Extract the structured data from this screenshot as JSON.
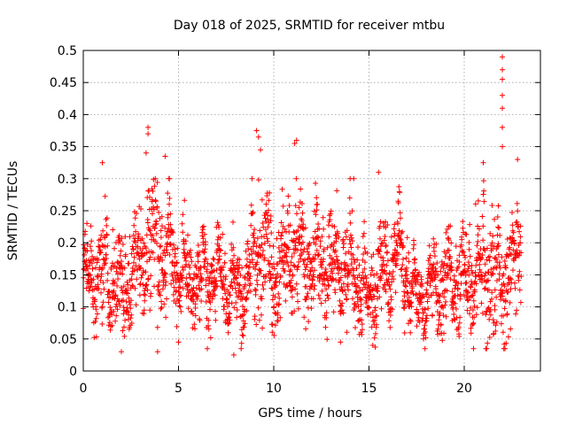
{
  "chart_data": {
    "type": "scatter",
    "title": "Day 018 of 2025, SRMTID for receiver mtbu",
    "xlabel": "GPS time / hours",
    "ylabel": "SRMTID / TECUs",
    "xlim": [
      0,
      24
    ],
    "ylim": [
      0,
      0.5
    ],
    "x_ticks": [
      0,
      5,
      10,
      15,
      20
    ],
    "x_tick_labels": [
      "0",
      "5",
      "10",
      "15",
      "20"
    ],
    "y_ticks": [
      0,
      0.05,
      0.1,
      0.15,
      0.2,
      0.25,
      0.3,
      0.35,
      0.4,
      0.45,
      0.5
    ],
    "y_tick_labels": [
      "0",
      "0.05",
      "0.1",
      "0.15",
      "0.2",
      "0.25",
      "0.3",
      "0.35",
      "0.4",
      "0.45",
      "0.5"
    ],
    "grid": true,
    "legend": "none",
    "marker": "+",
    "marker_color": "#ff0000",
    "x_data_end": 23,
    "x_sample_step": 0.01,
    "profile_hours": [
      0,
      1,
      2,
      3,
      3.8,
      4.5,
      5.5,
      7,
      8.5,
      9.2,
      10,
      11,
      12.5,
      14,
      15,
      16.5,
      17.5,
      18.5,
      20,
      21,
      22,
      22.8,
      23
    ],
    "profile_center": [
      0.14,
      0.16,
      0.13,
      0.17,
      0.2,
      0.18,
      0.14,
      0.15,
      0.12,
      0.2,
      0.15,
      0.18,
      0.17,
      0.15,
      0.12,
      0.18,
      0.11,
      0.13,
      0.14,
      0.17,
      0.13,
      0.18,
      0.18
    ],
    "profile_spread": [
      0.05,
      0.07,
      0.07,
      0.07,
      0.1,
      0.07,
      0.06,
      0.06,
      0.06,
      0.1,
      0.08,
      0.08,
      0.07,
      0.07,
      0.07,
      0.07,
      0.05,
      0.06,
      0.06,
      0.1,
      0.1,
      0.08,
      0.08
    ],
    "extreme_points": [
      {
        "x": 3.4,
        "y": 0.38
      },
      {
        "x": 3.4,
        "y": 0.37
      },
      {
        "x": 3.3,
        "y": 0.34
      },
      {
        "x": 4.3,
        "y": 0.335
      },
      {
        "x": 9.1,
        "y": 0.375
      },
      {
        "x": 9.2,
        "y": 0.365
      },
      {
        "x": 9.3,
        "y": 0.345
      },
      {
        "x": 11.2,
        "y": 0.36
      },
      {
        "x": 11.1,
        "y": 0.355
      },
      {
        "x": 1.0,
        "y": 0.325
      },
      {
        "x": 21.0,
        "y": 0.325
      },
      {
        "x": 22.0,
        "y": 0.49
      },
      {
        "x": 22.0,
        "y": 0.47
      },
      {
        "x": 22.0,
        "y": 0.455
      },
      {
        "x": 22.0,
        "y": 0.43
      },
      {
        "x": 22.0,
        "y": 0.41
      },
      {
        "x": 22.0,
        "y": 0.38
      },
      {
        "x": 22.0,
        "y": 0.35
      },
      {
        "x": 22.8,
        "y": 0.33
      },
      {
        "x": 14.2,
        "y": 0.3
      },
      {
        "x": 15.5,
        "y": 0.31
      },
      {
        "x": 7.9,
        "y": 0.025
      },
      {
        "x": 2.0,
        "y": 0.03
      },
      {
        "x": 3.9,
        "y": 0.03
      },
      {
        "x": 5.0,
        "y": 0.045
      },
      {
        "x": 13.5,
        "y": 0.045
      },
      {
        "x": 15.2,
        "y": 0.04
      }
    ]
  }
}
